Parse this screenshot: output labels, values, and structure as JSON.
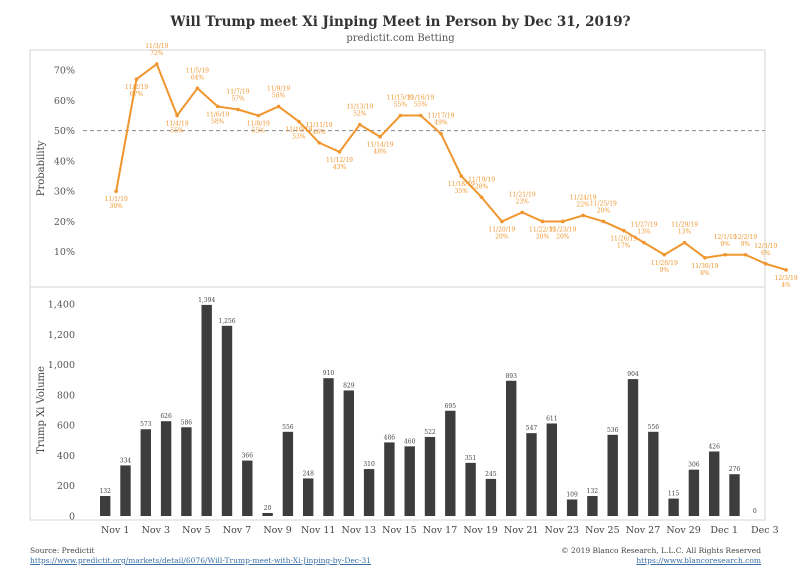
{
  "title": "Will Trump meet Xi Jinping Meet in Person by Dec 31, 2019?",
  "subtitle": "predictit.com Betting",
  "footer": {
    "source": "Source: Predictit",
    "source_url": "https://www.predictit.org/markets/detail/6076/Will-Trump-meet-with-Xi-Jinping-by-Dec-31",
    "copyright": "© 2019 Blanco Research, L.L.C. All Rights Reserved",
    "site_url": "https://www.blancoresearch.com"
  },
  "chart_data": [
    {
      "type": "line",
      "ylabel": "Probability",
      "ylim": [
        0,
        75
      ],
      "yticks": [
        "10%",
        "20%",
        "30%",
        "40%",
        "50%",
        "60%",
        "70%"
      ],
      "yticks_values": [
        10,
        20,
        30,
        40,
        50,
        60,
        70
      ],
      "reference_line": 50,
      "color": "#f0962e",
      "x": [
        1,
        2,
        3,
        4,
        5,
        6,
        7,
        8,
        9,
        10,
        11,
        12,
        13,
        14,
        15,
        16,
        17,
        18,
        19,
        20,
        21,
        22,
        23,
        24,
        25,
        26,
        27,
        28,
        29,
        30,
        31,
        32,
        33,
        34
      ],
      "values": [
        30,
        67,
        72,
        55,
        64,
        58,
        57,
        55,
        58,
        53,
        46,
        43,
        52,
        48,
        55,
        55,
        49,
        35,
        28,
        20,
        23,
        20,
        20,
        22,
        20,
        17,
        13,
        9,
        13,
        8,
        9,
        9,
        6,
        4
      ],
      "point_labels": [
        {
          "i": 0,
          "date": "11/1/19",
          "val": "30%"
        },
        {
          "i": 1,
          "date": "11/2/19",
          "val": "67%"
        },
        {
          "i": 2,
          "date": "11/3/19",
          "val": "72%"
        },
        {
          "i": 3,
          "date": "11/4/19",
          "val": "55%"
        },
        {
          "i": 4,
          "date": "11/5/19",
          "val": "64%"
        },
        {
          "i": 5,
          "date": "11/6/19",
          "val": "58%"
        },
        {
          "i": 6,
          "date": "11/7/19",
          "val": "57%"
        },
        {
          "i": 7,
          "date": "11/8/19",
          "val": "55%"
        },
        {
          "i": 8,
          "date": "11/9/19",
          "val": "58%"
        },
        {
          "i": 9,
          "date": "11/10/19",
          "val": "53%"
        },
        {
          "i": 10,
          "date": "11/11/19",
          "val": "46%"
        },
        {
          "i": 11,
          "date": "11/12/19",
          "val": "43%"
        },
        {
          "i": 12,
          "date": "11/13/19",
          "val": "52%"
        },
        {
          "i": 13,
          "date": "11/14/19",
          "val": "48%"
        },
        {
          "i": 14,
          "date": "11/15/19",
          "val": "55%"
        },
        {
          "i": 15,
          "date": "11/16/19",
          "val": "55%"
        },
        {
          "i": 16,
          "date": "11/17/19",
          "val": "49%"
        },
        {
          "i": 17,
          "date": "11/18/19",
          "val": "35%"
        },
        {
          "i": 18,
          "date": "11/19/19",
          "val": "28%"
        },
        {
          "i": 19,
          "date": "11/20/19",
          "val": "20%"
        },
        {
          "i": 20,
          "date": "11/21/19",
          "val": "23%"
        },
        {
          "i": 21,
          "date": "11/22/19",
          "val": "20%"
        },
        {
          "i": 22,
          "date": "11/23/19",
          "val": "20%"
        },
        {
          "i": 23,
          "date": "11/24/19",
          "val": "22%"
        },
        {
          "i": 24,
          "date": "11/25/19",
          "val": "20%"
        },
        {
          "i": 25,
          "date": "11/26/19",
          "val": "17%"
        },
        {
          "i": 26,
          "date": "11/27/19",
          "val": "13%"
        },
        {
          "i": 27,
          "date": "11/28/19",
          "val": "9%"
        },
        {
          "i": 28,
          "date": "11/29/19",
          "val": "13%"
        },
        {
          "i": 29,
          "date": "11/30/19",
          "val": "8%"
        },
        {
          "i": 30,
          "date": "12/1/19",
          "val": "9%"
        },
        {
          "i": 31,
          "date": "12/2/19",
          "val": "9%"
        },
        {
          "i": 32,
          "date": "12/3/19",
          "val": "6%"
        },
        {
          "i": 33,
          "date": "12/3/19",
          "val": "4%"
        }
      ]
    },
    {
      "type": "bar",
      "ylabel": "Trump Xi Volume",
      "ylim": [
        0,
        1400
      ],
      "yticks": [
        "0",
        "200",
        "400",
        "600",
        "800",
        "1,000",
        "1,200",
        "1,400"
      ],
      "yticks_values": [
        0,
        200,
        400,
        600,
        800,
        1000,
        1200,
        1400
      ],
      "color": "#3d3d3d",
      "categories": [
        "Nov 1",
        "Nov 2",
        "Nov 3",
        "Nov 4",
        "Nov 5",
        "Nov 6",
        "Nov 7",
        "Nov 8",
        "Nov 9",
        "Nov 10",
        "Nov 11",
        "Nov 12",
        "Nov 13",
        "Nov 14",
        "Nov 15",
        "Nov 16",
        "Nov 17",
        "Nov 18",
        "Nov 19",
        "Nov 20",
        "Nov 21",
        "Nov 22",
        "Nov 23",
        "Nov 24",
        "Nov 25",
        "Nov 26",
        "Nov 27",
        "Nov 28",
        "Nov 29",
        "Nov 30",
        "Dec 1",
        "Dec 2",
        "Dec 3"
      ],
      "values": [
        132,
        334,
        573,
        626,
        586,
        1394,
        1256,
        366,
        20,
        556,
        248,
        910,
        829,
        310,
        486,
        460,
        522,
        695,
        351,
        245,
        893,
        547,
        611,
        109,
        132,
        536,
        904,
        556,
        115,
        306,
        426,
        276,
        0
      ],
      "data_labels": [
        "132",
        "334",
        "573",
        "626",
        "586",
        "1,394",
        "1,256",
        "366",
        "20",
        "556",
        "248",
        "910",
        "829",
        "310",
        "486",
        "460",
        "522",
        "695",
        "351",
        "245",
        "893",
        "547",
        "611",
        "109",
        "132",
        "536",
        "904",
        "556",
        "115",
        "306",
        "426",
        "276",
        "0"
      ],
      "xtick_labels": [
        {
          "i": 0,
          "label": "Nov 1"
        },
        {
          "i": 2,
          "label": "Nov 3"
        },
        {
          "i": 4,
          "label": "Nov 5"
        },
        {
          "i": 6,
          "label": "Nov 7"
        },
        {
          "i": 8,
          "label": "Nov 9"
        },
        {
          "i": 10,
          "label": "Nov 11"
        },
        {
          "i": 12,
          "label": "Nov 13"
        },
        {
          "i": 14,
          "label": "Nov 15"
        },
        {
          "i": 16,
          "label": "Nov 17"
        },
        {
          "i": 18,
          "label": "Nov 19"
        },
        {
          "i": 20,
          "label": "Nov 21"
        },
        {
          "i": 22,
          "label": "Nov 23"
        },
        {
          "i": 24,
          "label": "Nov 25"
        },
        {
          "i": 26,
          "label": "Nov 27"
        },
        {
          "i": 28,
          "label": "Nov 29"
        },
        {
          "i": 30,
          "label": "Dec 1"
        },
        {
          "i": 32,
          "label": "Dec 3"
        }
      ]
    }
  ]
}
